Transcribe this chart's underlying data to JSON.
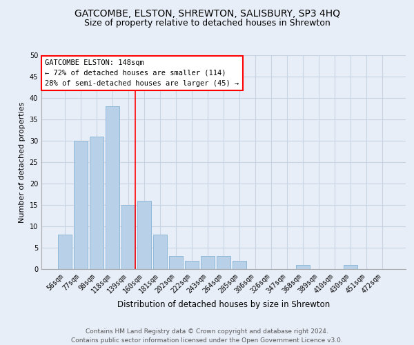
{
  "title": "GATCOMBE, ELSTON, SHREWTON, SALISBURY, SP3 4HQ",
  "subtitle": "Size of property relative to detached houses in Shrewton",
  "xlabel": "Distribution of detached houses by size in Shrewton",
  "ylabel": "Number of detached properties",
  "categories": [
    "56sqm",
    "77sqm",
    "98sqm",
    "118sqm",
    "139sqm",
    "160sqm",
    "181sqm",
    "202sqm",
    "222sqm",
    "243sqm",
    "264sqm",
    "285sqm",
    "306sqm",
    "326sqm",
    "347sqm",
    "368sqm",
    "389sqm",
    "410sqm",
    "430sqm",
    "451sqm",
    "472sqm"
  ],
  "values": [
    8,
    30,
    31,
    38,
    15,
    16,
    8,
    3,
    2,
    3,
    3,
    2,
    0,
    0,
    0,
    1,
    0,
    0,
    1,
    0,
    0
  ],
  "bar_color": "#b8d0e8",
  "bar_edge_color": "#90b8d8",
  "grid_color": "#c8d4e4",
  "background_color": "#e8eef8",
  "annotation_box_text": "GATCOMBE ELSTON: 148sqm\n← 72% of detached houses are smaller (114)\n28% of semi-detached houses are larger (45) →",
  "annotation_box_color": "white",
  "annotation_box_edge_color": "red",
  "red_line_x": 4.43,
  "ylim": [
    0,
    50
  ],
  "yticks": [
    0,
    5,
    10,
    15,
    20,
    25,
    30,
    35,
    40,
    45,
    50
  ],
  "footnote": "Contains HM Land Registry data © Crown copyright and database right 2024.\nContains public sector information licensed under the Open Government Licence v3.0.",
  "title_fontsize": 10,
  "subtitle_fontsize": 9,
  "xlabel_fontsize": 8.5,
  "ylabel_fontsize": 8,
  "tick_fontsize": 7,
  "annot_fontsize": 7.5,
  "footnote_fontsize": 6.5
}
